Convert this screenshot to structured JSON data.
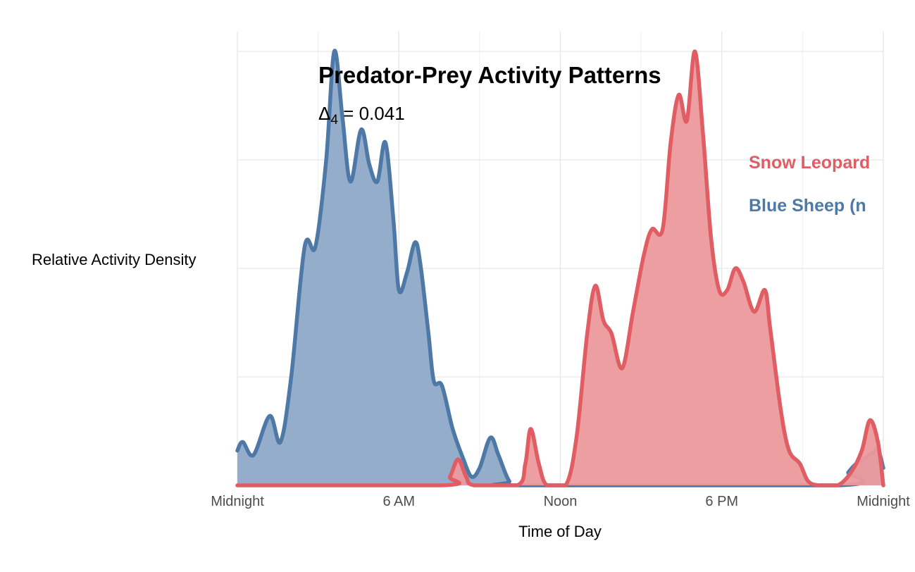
{
  "chart_data": {
    "type": "area",
    "title": "Predator-Prey Activity Patterns",
    "subtitle": {
      "prefix": "Δ",
      "subscript": "4",
      "suffix": " = 0.041"
    },
    "xlabel": "Time of Day",
    "ylabel": "Relative Activity Density",
    "xlim": [
      0,
      24
    ],
    "ylim": [
      0,
      1
    ],
    "x_ticks": [
      {
        "value": 0,
        "label": "Midnight"
      },
      {
        "value": 6,
        "label": "6 AM"
      },
      {
        "value": 12,
        "label": "Noon"
      },
      {
        "value": 18,
        "label": "6 PM"
      },
      {
        "value": 24,
        "label": "Midnight"
      }
    ],
    "y_gridlines": [
      0.25,
      0.5,
      0.75,
      1.0
    ],
    "legend_position": "right",
    "series": [
      {
        "name": "Blue Sheep (n",
        "color": "#4e79a7",
        "fill": "#8ea9c8",
        "points": [
          [
            0,
            0.08
          ],
          [
            0.2,
            0.1
          ],
          [
            0.6,
            0.07
          ],
          [
            1.2,
            0.16
          ],
          [
            1.6,
            0.1
          ],
          [
            2.0,
            0.25
          ],
          [
            2.5,
            0.55
          ],
          [
            2.9,
            0.55
          ],
          [
            3.3,
            0.75
          ],
          [
            3.6,
            1.0
          ],
          [
            3.9,
            0.85
          ],
          [
            4.2,
            0.7
          ],
          [
            4.6,
            0.82
          ],
          [
            4.9,
            0.74
          ],
          [
            5.2,
            0.7
          ],
          [
            5.5,
            0.79
          ],
          [
            5.8,
            0.61
          ],
          [
            6.0,
            0.45
          ],
          [
            6.3,
            0.49
          ],
          [
            6.6,
            0.56
          ],
          [
            6.8,
            0.51
          ],
          [
            7.1,
            0.35
          ],
          [
            7.3,
            0.24
          ],
          [
            7.6,
            0.23
          ],
          [
            8.0,
            0.13
          ],
          [
            8.4,
            0.06
          ],
          [
            8.7,
            0.02
          ],
          [
            9.0,
            0.04
          ],
          [
            9.4,
            0.11
          ],
          [
            9.7,
            0.07
          ],
          [
            10.1,
            0.01
          ],
          [
            10.5,
            0.0
          ],
          [
            22.3,
            0.0
          ],
          [
            22.7,
            0.03
          ],
          [
            23.0,
            0.05
          ],
          [
            23.5,
            0.07
          ],
          [
            23.8,
            0.08
          ],
          [
            24,
            0.04
          ]
        ]
      },
      {
        "name": "Snow Leopard",
        "color": "#e05d63",
        "fill": "#eb999c",
        "points": [
          [
            0,
            0.0
          ],
          [
            7.6,
            0.0
          ],
          [
            7.9,
            0.02
          ],
          [
            8.2,
            0.06
          ],
          [
            8.5,
            0.02
          ],
          [
            8.8,
            0.0
          ],
          [
            10.4,
            0.0
          ],
          [
            10.7,
            0.05
          ],
          [
            10.9,
            0.13
          ],
          [
            11.2,
            0.05
          ],
          [
            11.5,
            0.0
          ],
          [
            12.2,
            0.0
          ],
          [
            12.6,
            0.11
          ],
          [
            13.0,
            0.35
          ],
          [
            13.3,
            0.46
          ],
          [
            13.6,
            0.38
          ],
          [
            13.9,
            0.35
          ],
          [
            14.3,
            0.27
          ],
          [
            14.7,
            0.4
          ],
          [
            15.1,
            0.53
          ],
          [
            15.4,
            0.59
          ],
          [
            15.8,
            0.59
          ],
          [
            16.1,
            0.79
          ],
          [
            16.4,
            0.9
          ],
          [
            16.7,
            0.84
          ],
          [
            17.0,
            1.0
          ],
          [
            17.3,
            0.81
          ],
          [
            17.6,
            0.57
          ],
          [
            17.9,
            0.45
          ],
          [
            18.2,
            0.45
          ],
          [
            18.5,
            0.5
          ],
          [
            18.8,
            0.47
          ],
          [
            19.2,
            0.4
          ],
          [
            19.6,
            0.45
          ],
          [
            19.8,
            0.36
          ],
          [
            20.2,
            0.17
          ],
          [
            20.5,
            0.08
          ],
          [
            20.9,
            0.05
          ],
          [
            21.2,
            0.01
          ],
          [
            21.6,
            0.0
          ],
          [
            22.3,
            0.0
          ],
          [
            22.8,
            0.03
          ],
          [
            23.2,
            0.08
          ],
          [
            23.5,
            0.15
          ],
          [
            23.8,
            0.1
          ],
          [
            24,
            0.0
          ]
        ]
      }
    ]
  }
}
